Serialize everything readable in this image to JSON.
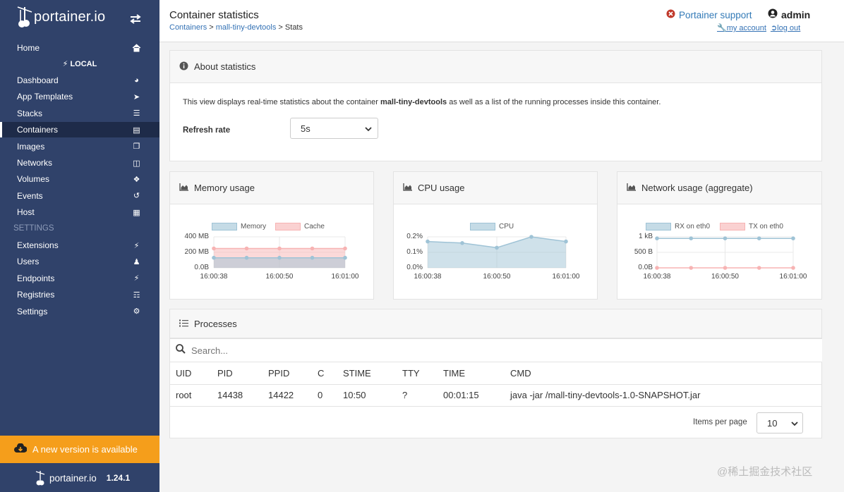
{
  "app": {
    "logo_text": "portainer.io",
    "version": "1.24.1",
    "update_banner": "A new version is available"
  },
  "sidebar": {
    "home": "Home",
    "endpoint_name": "LOCAL",
    "items": [
      {
        "label": "Dashboard",
        "icon": "tachometer-icon"
      },
      {
        "label": "App Templates",
        "icon": "rocket-icon"
      },
      {
        "label": "Stacks",
        "icon": "th-list-icon"
      },
      {
        "label": "Containers",
        "icon": "server-icon"
      },
      {
        "label": "Images",
        "icon": "clone-icon"
      },
      {
        "label": "Networks",
        "icon": "sitemap-icon"
      },
      {
        "label": "Volumes",
        "icon": "cubes-icon"
      },
      {
        "label": "Events",
        "icon": "history-icon"
      },
      {
        "label": "Host",
        "icon": "th-icon"
      }
    ],
    "settings_heading": "SETTINGS",
    "settings_items": [
      {
        "label": "Extensions",
        "icon": "bolt-icon"
      },
      {
        "label": "Users",
        "icon": "users-icon"
      },
      {
        "label": "Endpoints",
        "icon": "plug-icon"
      },
      {
        "label": "Registries",
        "icon": "database-icon"
      },
      {
        "label": "Settings",
        "icon": "cogs-icon"
      }
    ]
  },
  "header": {
    "title": "Container statistics",
    "breadcrumb": {
      "c1": "Containers",
      "sep": ">",
      "c2": "mall-tiny-devtools",
      "c3": "Stats"
    },
    "support": "Portainer support",
    "user": "admin",
    "my_account": "my account",
    "log_out": "log out"
  },
  "about": {
    "title": "About statistics",
    "text_before": "This view displays real-time statistics about the container ",
    "container": "mall-tiny-devtools",
    "text_after": " as well as a list of the running processes inside this container.",
    "refresh_label": "Refresh rate",
    "refresh_value": "5s"
  },
  "charts": {
    "memory_title": "Memory usage",
    "cpu_title": "CPU usage",
    "network_title": "Network usage (aggregate)"
  },
  "chart_data": [
    {
      "type": "area",
      "x": [
        "16:00:38",
        "16:00:44",
        "16:00:50",
        "16:00:55",
        "16:01:00"
      ],
      "series": [
        {
          "name": "Memory",
          "values": [
            130,
            130,
            130,
            130,
            130
          ]
        },
        {
          "name": "Cache",
          "values": [
            250,
            250,
            250,
            250,
            250
          ]
        }
      ],
      "yticks": [
        "0.0B",
        "200 MB",
        "400 MB"
      ],
      "xticks": [
        "16:00:38",
        "16:00:50",
        "16:01:00"
      ],
      "ylim": [
        0,
        400
      ],
      "colors": [
        "#9fc3d6",
        "#f7b3b3"
      ]
    },
    {
      "type": "area",
      "x": [
        "16:00:38",
        "16:00:44",
        "16:00:50",
        "16:00:55",
        "16:01:00"
      ],
      "series": [
        {
          "name": "CPU",
          "values": [
            0.17,
            0.16,
            0.13,
            0.2,
            0.17
          ]
        }
      ],
      "yticks": [
        "0.0%",
        "0.1%",
        "0.2%"
      ],
      "xticks": [
        "16:00:38",
        "16:00:50",
        "16:01:00"
      ],
      "ylim": [
        0,
        0.2
      ],
      "colors": [
        "#9fc3d6"
      ]
    },
    {
      "type": "line",
      "x": [
        "16:00:38",
        "16:00:44",
        "16:00:50",
        "16:00:55",
        "16:01:00"
      ],
      "series": [
        {
          "name": "RX on eth0",
          "values": [
            950,
            950,
            950,
            950,
            950
          ]
        },
        {
          "name": "TX on eth0",
          "values": [
            0,
            0,
            0,
            0,
            0
          ]
        }
      ],
      "yticks": [
        "0.0B",
        "500 B",
        "1 kB"
      ],
      "xticks": [
        "16:00:38",
        "16:00:50",
        "16:01:00"
      ],
      "ylim": [
        0,
        1000
      ],
      "colors": [
        "#9fc3d6",
        "#f7b3b3"
      ]
    }
  ],
  "processes": {
    "title": "Processes",
    "search_placeholder": "Search...",
    "columns": [
      "UID",
      "PID",
      "PPID",
      "C",
      "STIME",
      "TTY",
      "TIME",
      "CMD"
    ],
    "rows": [
      [
        "root",
        "14438",
        "14422",
        "0",
        "10:50",
        "?",
        "00:01:15",
        "java -jar /mall-tiny-devtools-1.0-SNAPSHOT.jar"
      ]
    ],
    "items_per_page_label": "Items per page",
    "items_per_page": "10"
  },
  "watermark": "@稀土掘金技术社区"
}
